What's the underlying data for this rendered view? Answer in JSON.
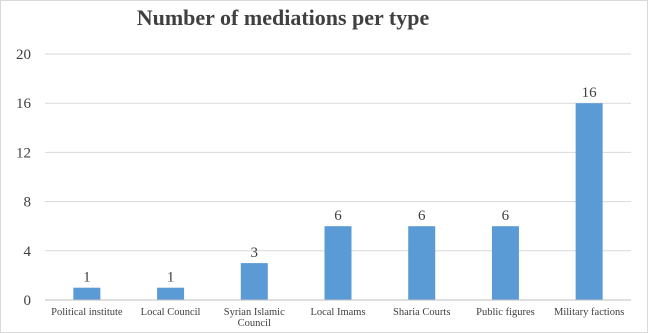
{
  "chart_data": {
    "type": "bar",
    "title": "Number of mediations per type",
    "xlabel": "",
    "ylabel": "",
    "categories": [
      [
        "Political institute"
      ],
      [
        "Local Council"
      ],
      [
        "Syrian Islamic",
        "Council"
      ],
      [
        "Local Imams"
      ],
      [
        "Sharia Courts"
      ],
      [
        "Public figures"
      ],
      [
        "Military factions"
      ]
    ],
    "values": [
      1,
      1,
      3,
      6,
      6,
      6,
      16
    ],
    "data_labels": [
      "1",
      "1",
      "3",
      "6",
      "6",
      "6",
      "16"
    ],
    "yticks": [
      "0",
      "4",
      "8",
      "12",
      "16",
      "20"
    ],
    "ylim": [
      0,
      20
    ],
    "grid": true,
    "legend": "none",
    "bar_color": "#5b9bd5"
  }
}
